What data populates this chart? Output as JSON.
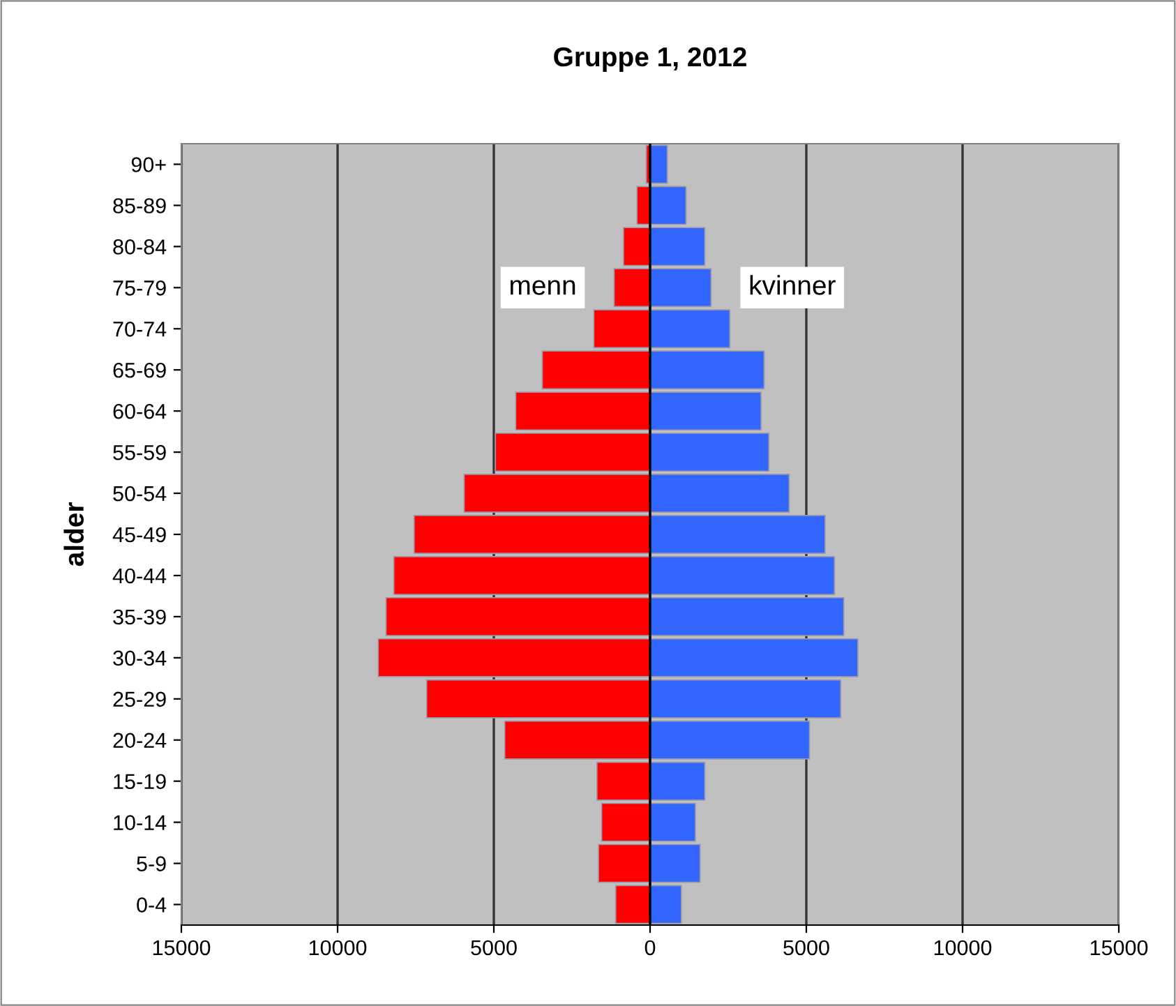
{
  "chart_data": {
    "type": "bar",
    "orientation": "horizontal",
    "title": "Gruppe 1, 2012",
    "ylabel": "alder",
    "categories": [
      "90+",
      "85-89",
      "80-84",
      "75-79",
      "70-74",
      "65-69",
      "60-64",
      "55-59",
      "50-54",
      "45-49",
      "40-44",
      "35-39",
      "30-34",
      "25-29",
      "20-24",
      "15-19",
      "10-14",
      "5-9",
      "0-4"
    ],
    "series": [
      {
        "name": "menn",
        "color": "#ff0000",
        "values": [
          -120,
          -420,
          -850,
          -1150,
          -1800,
          -3450,
          -4300,
          -4950,
          -5950,
          -7550,
          -8200,
          -8450,
          -8700,
          -7150,
          -4650,
          -1700,
          -1550,
          -1650,
          -1100
        ]
      },
      {
        "name": "kvinner",
        "color": "#3366ff",
        "values": [
          550,
          1150,
          1750,
          1950,
          2550,
          3650,
          3550,
          3800,
          4450,
          5600,
          5900,
          6200,
          6650,
          6100,
          5100,
          1750,
          1450,
          1600,
          1000
        ]
      }
    ],
    "xlim": [
      -15000,
      15000
    ],
    "xticks": [
      {
        "value": -15000,
        "label": "15000"
      },
      {
        "value": -10000,
        "label": "10000"
      },
      {
        "value": -5000,
        "label": "5000"
      },
      0,
      5000,
      10000,
      15000
    ],
    "grid": "x",
    "legend": false,
    "stacked": true
  }
}
